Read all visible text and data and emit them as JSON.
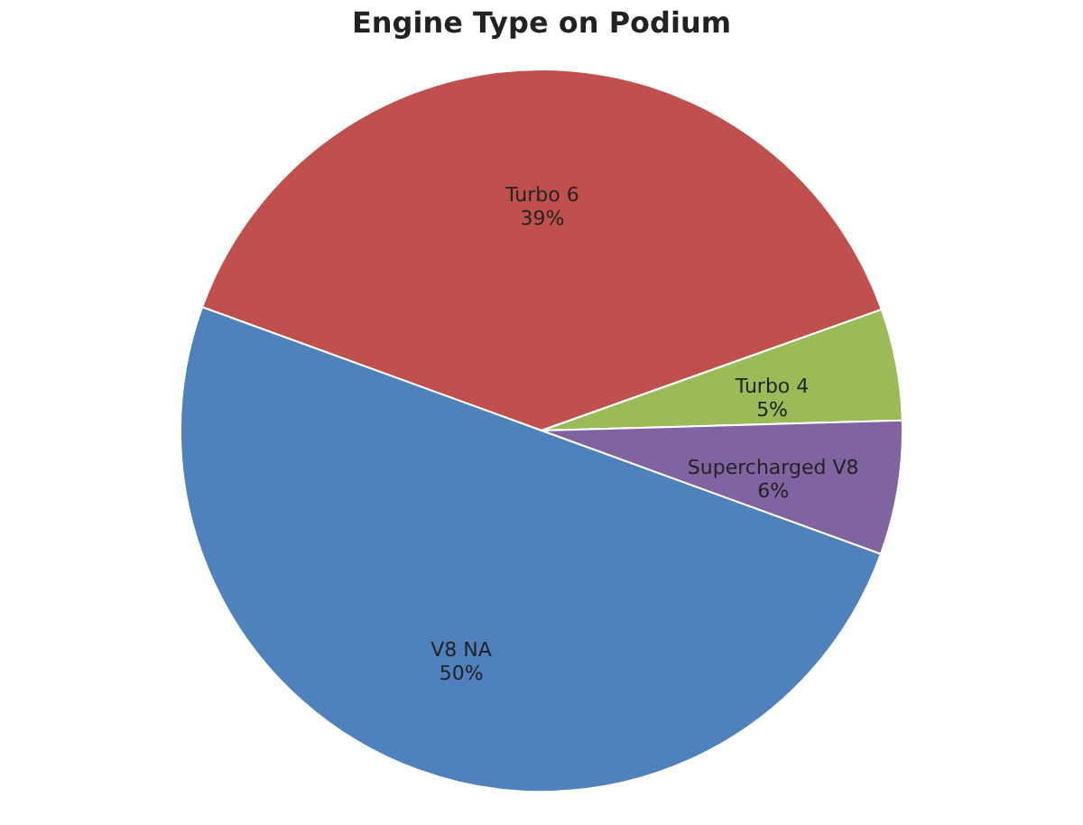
{
  "chart_data": {
    "type": "pie",
    "title": "Engine Type on Podium",
    "categories": [
      "Turbo 6",
      "Turbo 4",
      "Supercharged V8",
      "V8 NA"
    ],
    "values": [
      39,
      5,
      6,
      50
    ],
    "colors": [
      "#c0504d",
      "#9bbb59",
      "#8064a2",
      "#4f81bd"
    ],
    "value_labels": [
      "39%",
      "5%",
      "6%",
      "50%"
    ],
    "legend": false
  }
}
